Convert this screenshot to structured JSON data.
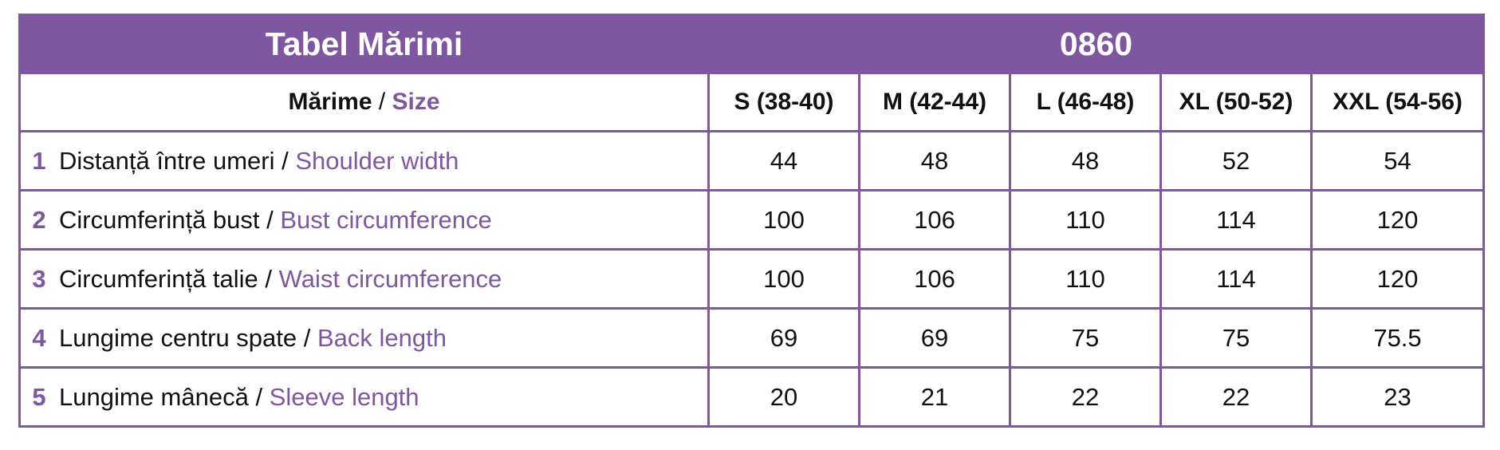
{
  "title": {
    "left": "Tabel Mărimi",
    "right": "0860"
  },
  "header": {
    "label_ro": "Mărime",
    "separator": " / ",
    "label_en": "Size",
    "sizes": [
      "S (38-40)",
      "M (42-44)",
      "L (46-48)",
      "XL (50-52)",
      "XXL (54-56)"
    ]
  },
  "rows": [
    {
      "num": "1",
      "ro": "Distanță între umeri",
      "sep": " / ",
      "en": "Shoulder width",
      "values": [
        "44",
        "48",
        "48",
        "52",
        "54"
      ]
    },
    {
      "num": "2",
      "ro": "Circumferință bust",
      "sep": " / ",
      "en": "Bust circumference",
      "values": [
        "100",
        "106",
        "110",
        "114",
        "120"
      ]
    },
    {
      "num": "3",
      "ro": "Circumferință talie",
      "sep": " / ",
      "en": "Waist circumference",
      "values": [
        "100",
        "106",
        "110",
        "114",
        "120"
      ]
    },
    {
      "num": "4",
      "ro": "Lungime centru spate",
      "sep": " / ",
      "en": "Back length",
      "values": [
        "69",
        "69",
        "75",
        "75",
        "75.5"
      ]
    },
    {
      "num": "5",
      "ro": "Lungime mânecă",
      "sep": " / ",
      "en": "Sleeve length",
      "values": [
        "20",
        "21",
        "22",
        "22",
        "23"
      ]
    }
  ],
  "colors": {
    "accent": "#7e57a0",
    "header_text": "#ffffff",
    "body_text": "#111111"
  }
}
